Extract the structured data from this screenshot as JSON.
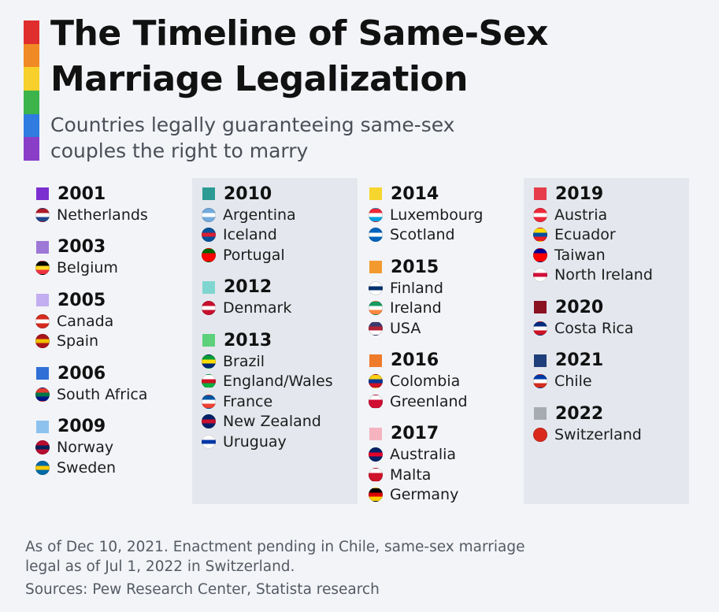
{
  "title": {
    "line1": "The Timeline of Same-Sex",
    "line2": "Marriage Legalization"
  },
  "subtitle": {
    "line1": "Countries legally guaranteeing same-sex",
    "line2": "couples the right to marry"
  },
  "rainbow_colors": [
    "#e02e2e",
    "#f08a24",
    "#f7d02b",
    "#3cb44b",
    "#2f7be0",
    "#8a3ec8"
  ],
  "columns": [
    {
      "shaded": false,
      "groups": [
        {
          "year": "2001",
          "color": "#7b2fd0",
          "countries": [
            {
              "name": "Netherlands",
              "flag": "netherlands-flag-icon",
              "flag_colors": [
                "#ae1c28",
                "#ffffff",
                "#21468b"
              ]
            }
          ]
        },
        {
          "year": "2003",
          "color": "#9d78d6",
          "countries": [
            {
              "name": "Belgium",
              "flag": "belgium-flag-icon",
              "flag_colors": [
                "#000000",
                "#fdda24",
                "#ef3340"
              ]
            }
          ]
        },
        {
          "year": "2005",
          "color": "#c2aef0",
          "countries": [
            {
              "name": "Canada",
              "flag": "canada-flag-icon",
              "flag_colors": [
                "#d52b1e",
                "#ffffff",
                "#d52b1e"
              ]
            },
            {
              "name": "Spain",
              "flag": "spain-flag-icon",
              "flag_colors": [
                "#aa151b",
                "#f1bf00",
                "#aa151b"
              ]
            }
          ]
        },
        {
          "year": "2006",
          "color": "#2f6fd6",
          "countries": [
            {
              "name": "South Africa",
              "flag": "south-africa-flag-icon",
              "flag_colors": [
                "#e03c31",
                "#007749",
                "#001489"
              ]
            }
          ]
        },
        {
          "year": "2009",
          "color": "#8ec2ee",
          "countries": [
            {
              "name": "Norway",
              "flag": "norway-flag-icon",
              "flag_colors": [
                "#ba0c2f",
                "#00205b",
                "#ba0c2f"
              ]
            },
            {
              "name": "Sweden",
              "flag": "sweden-flag-icon",
              "flag_colors": [
                "#006aa7",
                "#fecc00",
                "#006aa7"
              ]
            }
          ]
        }
      ]
    },
    {
      "shaded": true,
      "groups": [
        {
          "year": "2010",
          "color": "#2b9b94",
          "countries": [
            {
              "name": "Argentina",
              "flag": "argentina-flag-icon",
              "flag_colors": [
                "#74acdf",
                "#ffffff",
                "#74acdf"
              ]
            },
            {
              "name": "Iceland",
              "flag": "iceland-flag-icon",
              "flag_colors": [
                "#02529c",
                "#dc1e35",
                "#02529c"
              ]
            },
            {
              "name": "Portugal",
              "flag": "portugal-flag-icon",
              "flag_colors": [
                "#006600",
                "#ff0000",
                "#ff0000"
              ]
            }
          ]
        },
        {
          "year": "2012",
          "color": "#7fd6d0",
          "countries": [
            {
              "name": "Denmark",
              "flag": "denmark-flag-icon",
              "flag_colors": [
                "#c8102e",
                "#ffffff",
                "#c8102e"
              ]
            }
          ]
        },
        {
          "year": "2013",
          "color": "#5cd07a",
          "countries": [
            {
              "name": "Brazil",
              "flag": "brazil-flag-icon",
              "flag_colors": [
                "#009c3b",
                "#ffdf00",
                "#002776"
              ]
            },
            {
              "name": "England/Wales",
              "flag": "england-wales-flag-icon",
              "flag_colors": [
                "#ffffff",
                "#ce1124",
                "#00b140"
              ]
            },
            {
              "name": "France",
              "flag": "france-flag-icon",
              "flag_colors": [
                "#0055a4",
                "#ffffff",
                "#ef4135"
              ]
            },
            {
              "name": "New Zealand",
              "flag": "new-zealand-flag-icon",
              "flag_colors": [
                "#012169",
                "#c8102e",
                "#012169"
              ]
            },
            {
              "name": "Uruguay",
              "flag": "uruguay-flag-icon",
              "flag_colors": [
                "#ffffff",
                "#0038a8",
                "#ffffff"
              ]
            }
          ]
        }
      ]
    },
    {
      "shaded": false,
      "groups": [
        {
          "year": "2014",
          "color": "#f7d52f",
          "countries": [
            {
              "name": "Luxembourg",
              "flag": "luxembourg-flag-icon",
              "flag_colors": [
                "#ed2939",
                "#ffffff",
                "#00a1de"
              ]
            },
            {
              "name": "Scotland",
              "flag": "scotland-flag-icon",
              "flag_colors": [
                "#0065bd",
                "#ffffff",
                "#0065bd"
              ]
            }
          ]
        },
        {
          "year": "2015",
          "color": "#f39a2e",
          "countries": [
            {
              "name": "Finland",
              "flag": "finland-flag-icon",
              "flag_colors": [
                "#ffffff",
                "#002f6c",
                "#ffffff"
              ]
            },
            {
              "name": "Ireland",
              "flag": "ireland-flag-icon",
              "flag_colors": [
                "#169b62",
                "#ffffff",
                "#ff883e"
              ]
            },
            {
              "name": "USA",
              "flag": "usa-flag-icon",
              "flag_colors": [
                "#3c3b6e",
                "#b22234",
                "#ffffff"
              ]
            }
          ]
        },
        {
          "year": "2016",
          "color": "#ef7a2a",
          "countries": [
            {
              "name": "Colombia",
              "flag": "colombia-flag-icon",
              "flag_colors": [
                "#fcd116",
                "#003893",
                "#ce1126"
              ]
            },
            {
              "name": "Greenland",
              "flag": "greenland-flag-icon",
              "flag_colors": [
                "#ffffff",
                "#d00c33",
                "#d00c33"
              ]
            }
          ]
        },
        {
          "year": "2017",
          "color": "#f5b4bf",
          "countries": [
            {
              "name": "Australia",
              "flag": "australia-flag-icon",
              "flag_colors": [
                "#012169",
                "#e4002b",
                "#012169"
              ]
            },
            {
              "name": "Malta",
              "flag": "malta-flag-icon",
              "flag_colors": [
                "#ffffff",
                "#cf142b",
                "#cf142b"
              ]
            },
            {
              "name": "Germany",
              "flag": "germany-flag-icon",
              "flag_colors": [
                "#000000",
                "#dd0000",
                "#ffce00"
              ]
            }
          ]
        }
      ]
    },
    {
      "shaded": true,
      "groups": [
        {
          "year": "2019",
          "color": "#e63c4c",
          "countries": [
            {
              "name": "Austria",
              "flag": "austria-flag-icon",
              "flag_colors": [
                "#ed2939",
                "#ffffff",
                "#ed2939"
              ]
            },
            {
              "name": "Ecuador",
              "flag": "ecuador-flag-icon",
              "flag_colors": [
                "#ffdd00",
                "#034ea2",
                "#ed1c24"
              ]
            },
            {
              "name": "Taiwan",
              "flag": "taiwan-flag-icon",
              "flag_colors": [
                "#000095",
                "#fe0000",
                "#fe0000"
              ]
            },
            {
              "name": "North Ireland",
              "flag": "north-ireland-flag-icon",
              "flag_colors": [
                "#ffffff",
                "#d0103a",
                "#ffffff"
              ]
            }
          ]
        },
        {
          "year": "2020",
          "color": "#8b1020",
          "countries": [
            {
              "name": "Costa Rica",
              "flag": "costa-rica-flag-icon",
              "flag_colors": [
                "#002b7f",
                "#ffffff",
                "#ce1126"
              ]
            }
          ]
        },
        {
          "year": "2021",
          "color": "#1f3f7a",
          "countries": [
            {
              "name": "Chile",
              "flag": "chile-flag-icon",
              "flag_colors": [
                "#0039a6",
                "#ffffff",
                "#d52b1e"
              ]
            }
          ]
        },
        {
          "year": "2022",
          "color": "#a6abb2",
          "countries": [
            {
              "name": "Switzerland",
              "flag": "switzerland-flag-icon",
              "flag_colors": [
                "#da291c",
                "#da291c",
                "#da291c"
              ]
            }
          ]
        }
      ]
    }
  ],
  "footer": {
    "note_line1": "As of Dec 10, 2021. Enactment pending in Chile, same-sex marriage",
    "note_line2": "legal as of Jul 1, 2022 in Switzerland.",
    "sources": "Sources: Pew Research Center, Statista research"
  }
}
